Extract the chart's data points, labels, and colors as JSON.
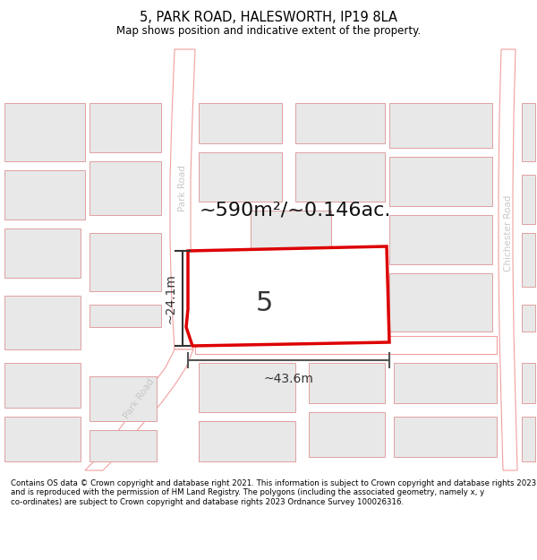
{
  "title": "5, PARK ROAD, HALESWORTH, IP19 8LA",
  "subtitle": "Map shows position and indicative extent of the property.",
  "area_label": "~590m²/~0.146ac.",
  "plot_number": "5",
  "width_label": "~43.6m",
  "height_label": "~24.1m",
  "footer_text": "Contains OS data © Crown copyright and database right 2021. This information is subject to Crown copyright and database rights 2023 and is reproduced with the permission of HM Land Registry. The polygons (including the associated geometry, namely x, y co-ordinates) are subject to Crown copyright and database rights 2023 Ordnance Survey 100026316.",
  "bg_color": "#ffffff",
  "map_bg": "#ffffff",
  "road_color": "#f0a0a0",
  "building_fill": "#e8e8e8",
  "building_edge": "#e0a0a0",
  "plot_fill": "#ffffff",
  "plot_edge": "#dd0000",
  "road_label_color": "#c0c0c0",
  "dim_color": "#333333",
  "title_color": "#000000",
  "footer_color": "#000000",
  "footer_bg": "#f5f5f5"
}
